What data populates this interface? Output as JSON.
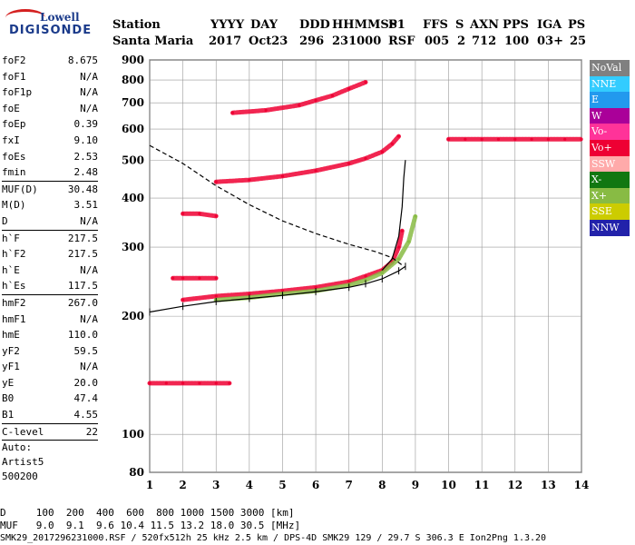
{
  "logo": {
    "line1": "Lowell",
    "line2": "DIGISONDE"
  },
  "header": {
    "labels": [
      "Station",
      "YYYY",
      "DAY",
      "DDD",
      "HHMMSS",
      "P1",
      "FFS",
      "S",
      "AXN",
      "PPS",
      "IGA",
      "PS"
    ],
    "values": [
      "Santa Maria",
      "2017",
      "Oct23",
      "296",
      "231000",
      "RSF",
      "005",
      "2",
      "712",
      "100",
      "03+",
      "25"
    ]
  },
  "params_group1": [
    {
      "k": "foF2",
      "v": "8.675"
    },
    {
      "k": "foF1",
      "v": "N/A"
    },
    {
      "k": "foF1p",
      "v": "N/A"
    },
    {
      "k": "foE",
      "v": "N/A"
    },
    {
      "k": "foEp",
      "v": "0.39"
    },
    {
      "k": "fxI",
      "v": "9.10"
    },
    {
      "k": "foEs",
      "v": "2.53"
    },
    {
      "k": "fmin",
      "v": "2.48"
    }
  ],
  "params_group2": [
    {
      "k": "MUF(D)",
      "v": "30.48"
    },
    {
      "k": "M(D)",
      "v": "3.51"
    },
    {
      "k": "D",
      "v": "N/A"
    }
  ],
  "params_group3": [
    {
      "k": "h`F",
      "v": "217.5"
    },
    {
      "k": "h`F2",
      "v": "217.5"
    },
    {
      "k": "h`E",
      "v": "N/A"
    },
    {
      "k": "h`Es",
      "v": "117.5"
    }
  ],
  "params_group4": [
    {
      "k": "hmF2",
      "v": "267.0"
    },
    {
      "k": "hmF1",
      "v": "N/A"
    },
    {
      "k": "hmE",
      "v": "110.0"
    },
    {
      "k": "yF2",
      "v": "59.5"
    },
    {
      "k": "yF1",
      "v": "N/A"
    },
    {
      "k": "yE",
      "v": "20.0"
    },
    {
      "k": "B0",
      "v": "47.4"
    },
    {
      "k": "B1",
      "v": "4.55"
    }
  ],
  "params_group5": [
    {
      "k": "C-level",
      "v": "22"
    }
  ],
  "autoscaling": {
    "line1": "Auto:",
    "line2": "Artist5",
    "line3": "500200"
  },
  "legend": [
    {
      "label": "NoVal",
      "color": "#808080"
    },
    {
      "label": "NNE",
      "color": "#33ccff"
    },
    {
      "label": "E",
      "color": "#2299ee"
    },
    {
      "label": "W",
      "color": "#aa0099"
    },
    {
      "label": "Vo-",
      "color": "#ff3399"
    },
    {
      "label": "Vo+",
      "color": "#ee0033"
    },
    {
      "label": "SSW",
      "color": "#ffaaaa"
    },
    {
      "label": "X-",
      "color": "#117711"
    },
    {
      "label": "X+",
      "color": "#88bb44"
    },
    {
      "label": "SSE",
      "color": "#cccc00"
    },
    {
      "label": "NNW",
      "color": "#2222aa"
    }
  ],
  "bottom": {
    "d_row": "D     100  200  400  600  800 1000 1500 3000 [km]",
    "muf_row": "MUF   9.0  9.1  9.6 10.4 11.5 13.2 18.0 30.5 [MHz]",
    "footer": "SMK29_2017296231000.RSF / 520fx512h 25 kHz 2.5 km / DPS-4D SMK29 129 / 29.7 S 306.3 E Ion2Png 1.3.20"
  },
  "chart_data": {
    "type": "scatter",
    "xlim": [
      1,
      14
    ],
    "ylim": [
      80,
      900
    ],
    "y_scale": "log",
    "x_ticks": [
      "1",
      "2",
      "3",
      "4",
      "5",
      "6",
      "7",
      "8",
      "9",
      "10",
      "11",
      "12",
      "13",
      "14"
    ],
    "y_ticks": [
      "80",
      "100",
      "200",
      "300",
      "400",
      "500",
      "600",
      "700",
      "800",
      "900"
    ],
    "grid": true,
    "series": [
      {
        "color": "#ee0033",
        "points": [
          [
            2.0,
            220
          ],
          [
            3.0,
            225
          ],
          [
            4.0,
            228
          ],
          [
            5.0,
            232
          ],
          [
            6.0,
            237
          ],
          [
            7.0,
            245
          ],
          [
            7.5,
            253
          ],
          [
            8.0,
            262
          ],
          [
            8.3,
            275
          ],
          [
            8.5,
            300
          ],
          [
            8.6,
            330
          ]
        ]
      },
      {
        "color": "#88bb44",
        "points": [
          [
            3.0,
            220
          ],
          [
            4.0,
            223
          ],
          [
            5.0,
            228
          ],
          [
            6.0,
            232
          ],
          [
            7.0,
            240
          ],
          [
            7.5,
            247
          ],
          [
            8.0,
            258
          ],
          [
            8.5,
            280
          ],
          [
            8.8,
            310
          ],
          [
            9.0,
            360
          ]
        ]
      },
      {
        "color": "#ee0033",
        "points": [
          [
            3.0,
            440
          ],
          [
            4.0,
            445
          ],
          [
            5.0,
            455
          ],
          [
            6.0,
            470
          ],
          [
            7.0,
            490
          ],
          [
            7.5,
            505
          ],
          [
            8.0,
            525
          ],
          [
            8.3,
            550
          ],
          [
            8.5,
            575
          ]
        ]
      },
      {
        "color": "#ee0033",
        "points": [
          [
            3.5,
            660
          ],
          [
            4.5,
            670
          ],
          [
            5.5,
            690
          ],
          [
            6.0,
            710
          ],
          [
            6.5,
            730
          ],
          [
            7.0,
            760
          ],
          [
            7.5,
            790
          ]
        ]
      },
      {
        "color": "#ee0033",
        "points": [
          [
            1.7,
            250
          ],
          [
            2.0,
            250
          ],
          [
            2.5,
            250
          ],
          [
            3.0,
            250
          ]
        ]
      },
      {
        "color": "#ee0033",
        "points": [
          [
            1.0,
            135
          ],
          [
            1.5,
            135
          ],
          [
            2.0,
            135
          ],
          [
            2.5,
            135
          ],
          [
            3.0,
            135
          ],
          [
            3.4,
            135
          ]
        ]
      },
      {
        "color": "#ee0033",
        "points": [
          [
            2.0,
            365
          ],
          [
            2.5,
            365
          ],
          [
            3.0,
            360
          ]
        ]
      },
      {
        "color": "#ee0033",
        "points": [
          [
            10.0,
            565
          ],
          [
            10.5,
            565
          ],
          [
            11.0,
            565
          ],
          [
            11.5,
            565
          ],
          [
            12.0,
            565
          ],
          [
            12.5,
            565
          ],
          [
            13.0,
            565
          ],
          [
            13.5,
            565
          ],
          [
            14.0,
            565
          ]
        ]
      }
    ],
    "profile": [
      [
        1.0,
        545
      ],
      [
        2.0,
        490
      ],
      [
        3.0,
        430
      ],
      [
        4.0,
        385
      ],
      [
        5.0,
        350
      ],
      [
        6.0,
        325
      ],
      [
        7.0,
        305
      ],
      [
        7.8,
        292
      ],
      [
        8.3,
        282
      ],
      [
        8.6,
        270
      ]
    ],
    "virtual_height_trace": [
      [
        1.0,
        205
      ],
      [
        2.0,
        212
      ],
      [
        3.0,
        218
      ],
      [
        4.0,
        222
      ],
      [
        5.0,
        226
      ],
      [
        6.0,
        231
      ],
      [
        7.0,
        237
      ],
      [
        7.5,
        242
      ],
      [
        8.0,
        249
      ],
      [
        8.5,
        261
      ],
      [
        8.7,
        268
      ]
    ],
    "vertical_trace": [
      [
        8.0,
        262
      ],
      [
        8.3,
        280
      ],
      [
        8.5,
        320
      ],
      [
        8.6,
        380
      ],
      [
        8.65,
        450
      ],
      [
        8.7,
        500
      ]
    ]
  }
}
